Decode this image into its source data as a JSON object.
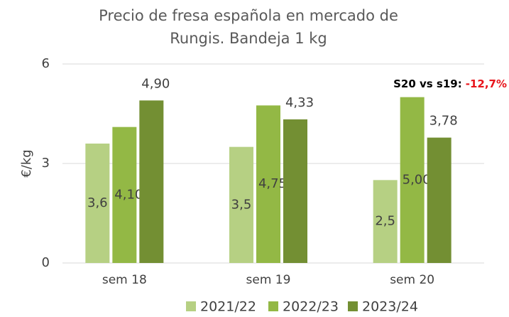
{
  "chart_data": {
    "type": "bar",
    "title": "Precio de fresa española en mercado de Rungis. Bandeja 1 kg",
    "y_label": "€/kg",
    "annotation": {
      "text": "S20 vs s19:",
      "highlight": "-12,7%"
    },
    "categories": [
      "sem 18",
      "sem 19",
      "sem 20"
    ],
    "series": [
      {
        "name": "2021/22",
        "color": "#b6d083",
        "values": [
          3.6,
          3.5,
          2.5
        ],
        "value_labels": [
          "3,6",
          "3,5",
          "2,5"
        ]
      },
      {
        "name": "2022/23",
        "color": "#93b845",
        "values": [
          4.1,
          4.75,
          5.0
        ],
        "value_labels": [
          "4,10",
          "4,75",
          "5,00"
        ]
      },
      {
        "name": "2023/24",
        "color": "#738f33",
        "values": [
          4.9,
          4.33,
          3.78
        ],
        "value_labels": [
          "4,90",
          "4,33",
          "3,78"
        ]
      }
    ],
    "ylim": [
      0,
      6
    ],
    "yticks": [
      0,
      3,
      6
    ],
    "grid": true,
    "legend": "bottom"
  }
}
